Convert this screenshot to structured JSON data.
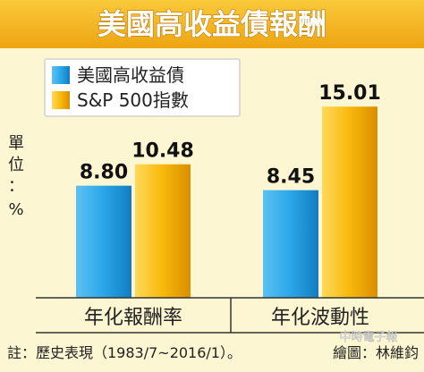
{
  "chart_data": {
    "type": "bar",
    "title": "美國高收益債報酬",
    "ylabel": "單位：%",
    "categories": [
      "年化報酬率",
      "年化波動性"
    ],
    "series": [
      {
        "name": "美國高收益債",
        "values": [
          8.8,
          8.45
        ],
        "labels": [
          "8.80",
          "8.45"
        ]
      },
      {
        "name": "S&P 500指數",
        "values": [
          10.48,
          15.01
        ],
        "labels": [
          "10.48",
          "15.01"
        ]
      }
    ],
    "ylim": [
      0,
      16.5
    ],
    "grid": false,
    "legend_position": "top-left"
  },
  "note": "註：歷史表現（1983/7~2016/1）。",
  "credit": "繪圖：林維鈞",
  "watermark": "中時電子報",
  "colors": {
    "background": "#fdf6d2",
    "title_band": "#f4b619",
    "title_text": "#ffffff",
    "series_blue": "#29a3e6",
    "series_gold": "#f7b500",
    "text": "#222222"
  }
}
